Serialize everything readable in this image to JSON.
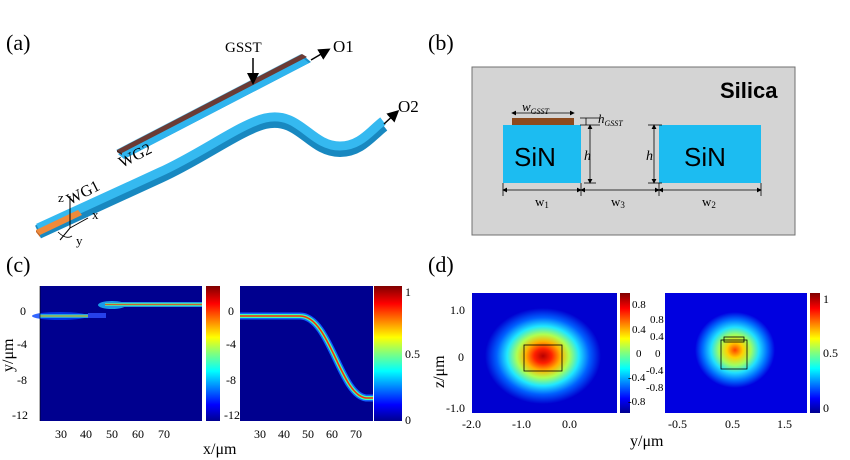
{
  "panels": {
    "a": {
      "label": "(a)",
      "labels": {
        "gsst": "GSST",
        "o1": "O1",
        "o2": "O2",
        "wg1": "WG1",
        "wg2": "WG2",
        "ax_z": "z",
        "ax_x": "x",
        "ax_y": "y"
      },
      "colors": {
        "waveguide": "#2fb4ee",
        "gsst": "#6b3b35",
        "input": "#f08a3a"
      }
    },
    "b": {
      "label": "(b)",
      "silica": "Silica",
      "sin": "SiN",
      "w_gsst": "w",
      "w_gsst_sub": "GSST",
      "h_gsst": "h",
      "h_gsst_sub": "GSST",
      "h": "h",
      "w1": "w",
      "w1_sub": "1",
      "w2": "w",
      "w2_sub": "2",
      "w3": "w",
      "w3_sub": "3",
      "colors": {
        "background": "#d4d4d4",
        "sin": "#1cbcf1",
        "gsst": "#8c4a1e"
      }
    },
    "c": {
      "label": "(c)",
      "ylabel": "y/μm",
      "xlabel": "x/μm",
      "left_yticks": [
        "0",
        "-4",
        "-8",
        "-12"
      ],
      "left_xticks": [
        "30",
        "40",
        "50",
        "60",
        "70"
      ],
      "right_yticks": [
        "0",
        "-4",
        "-8",
        "-12"
      ],
      "right_xticks": [
        "30",
        "40",
        "50",
        "60",
        "70"
      ],
      "colorbar_ticks": [
        "1",
        "0.5",
        "0"
      ]
    },
    "d": {
      "label": "(d)",
      "ylabel": "z/μm",
      "xlabel": "y/μm",
      "left_yticks": [
        "1.0",
        "0",
        "-1.0"
      ],
      "left_xticks": [
        "-2.0",
        "-1.0",
        "0.0"
      ],
      "left_cbar_ticks": [
        "0.8",
        "0.4",
        "0",
        "-0.4",
        "-0.8"
      ],
      "right_xticks": [
        "-0.5",
        "0.5",
        "1.5"
      ],
      "right_yticks": [
        "0.8",
        "0.4",
        "0",
        "-0.4",
        "-0.8"
      ],
      "right_cbar_ticks": [
        "1",
        "0.5",
        "0"
      ]
    }
  }
}
